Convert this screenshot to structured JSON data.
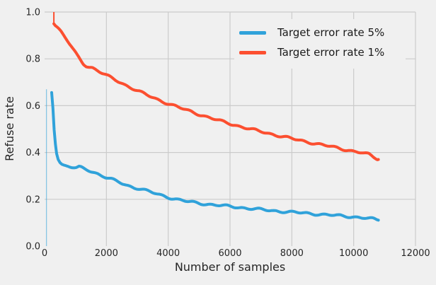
{
  "figure": {
    "background": "#f0f0f0",
    "grid_color": "#cbcbcb",
    "text_color": "#262626"
  },
  "chart_data": {
    "type": "line",
    "title": "",
    "xlabel": "Number of samples",
    "ylabel": "Refuse rate",
    "xlim": [
      0,
      12000
    ],
    "ylim": [
      0.0,
      1.0
    ],
    "grid": true,
    "legend_position": "upper right",
    "x_ticks": [
      {
        "value": 0,
        "label": "0"
      },
      {
        "value": 2000,
        "label": "2000"
      },
      {
        "value": 4000,
        "label": "4000"
      },
      {
        "value": 6000,
        "label": "6000"
      },
      {
        "value": 8000,
        "label": "8000"
      },
      {
        "value": 10000,
        "label": "10000"
      },
      {
        "value": 12000,
        "label": "12000"
      }
    ],
    "y_ticks": [
      {
        "value": 0.0,
        "label": "0.0"
      },
      {
        "value": 0.2,
        "label": "0.2"
      },
      {
        "value": 0.4,
        "label": "0.4"
      },
      {
        "value": 0.6,
        "label": "0.6"
      },
      {
        "value": 0.8,
        "label": "0.8"
      },
      {
        "value": 1.0,
        "label": "1.0"
      }
    ],
    "series": [
      {
        "name": "Target error rate 5%",
        "color": "#30a2da",
        "lead_in": {
          "n": 60,
          "from": 0.0,
          "to": 0.67
        },
        "points": [
          [
            230,
            0.655
          ],
          [
            270,
            0.59
          ],
          [
            310,
            0.5
          ],
          [
            350,
            0.44
          ],
          [
            390,
            0.4
          ],
          [
            440,
            0.375
          ],
          [
            500,
            0.36
          ],
          [
            560,
            0.35
          ],
          [
            640,
            0.344
          ],
          [
            720,
            0.341
          ],
          [
            820,
            0.338
          ],
          [
            920,
            0.336
          ],
          [
            1020,
            0.334
          ],
          [
            1120,
            0.337
          ],
          [
            1260,
            0.331
          ],
          [
            1400,
            0.325
          ],
          [
            1550,
            0.318
          ],
          [
            1700,
            0.31
          ],
          [
            1850,
            0.301
          ],
          [
            2000,
            0.293
          ],
          [
            2150,
            0.286
          ],
          [
            2300,
            0.278
          ],
          [
            2500,
            0.268
          ],
          [
            2700,
            0.258
          ],
          [
            2900,
            0.25
          ],
          [
            3100,
            0.245
          ],
          [
            3400,
            0.232
          ],
          [
            3700,
            0.22
          ],
          [
            4000,
            0.209
          ],
          [
            4300,
            0.199
          ],
          [
            4600,
            0.191
          ],
          [
            4900,
            0.185
          ],
          [
            5200,
            0.18
          ],
          [
            5500,
            0.176
          ],
          [
            5800,
            0.172
          ],
          [
            6100,
            0.168
          ],
          [
            6400,
            0.164
          ],
          [
            6700,
            0.16
          ],
          [
            7000,
            0.156
          ],
          [
            7300,
            0.152
          ],
          [
            7600,
            0.149
          ],
          [
            8000,
            0.145
          ],
          [
            8400,
            0.141
          ],
          [
            8800,
            0.137
          ],
          [
            9200,
            0.133
          ],
          [
            9600,
            0.129
          ],
          [
            10000,
            0.125
          ],
          [
            10300,
            0.121
          ],
          [
            10600,
            0.116
          ],
          [
            10800,
            0.111
          ]
        ]
      },
      {
        "name": "Target error rate 1%",
        "color": "#fc4f30",
        "lead_in": {
          "n": 300,
          "from": 1.0,
          "to": 0.95
        },
        "points": [
          [
            300,
            0.955
          ],
          [
            350,
            0.945
          ],
          [
            420,
            0.935
          ],
          [
            500,
            0.922
          ],
          [
            580,
            0.907
          ],
          [
            660,
            0.892
          ],
          [
            740,
            0.877
          ],
          [
            820,
            0.861
          ],
          [
            900,
            0.845
          ],
          [
            980,
            0.829
          ],
          [
            1060,
            0.813
          ],
          [
            1150,
            0.797
          ],
          [
            1250,
            0.78
          ],
          [
            1350,
            0.77
          ],
          [
            1450,
            0.765
          ],
          [
            1550,
            0.762
          ],
          [
            1650,
            0.755
          ],
          [
            1750,
            0.748
          ],
          [
            1850,
            0.74
          ],
          [
            2000,
            0.729
          ],
          [
            2150,
            0.719
          ],
          [
            2300,
            0.709
          ],
          [
            2450,
            0.699
          ],
          [
            2600,
            0.689
          ],
          [
            2800,
            0.677
          ],
          [
            3000,
            0.664
          ],
          [
            3200,
            0.652
          ],
          [
            3400,
            0.64
          ],
          [
            3600,
            0.629
          ],
          [
            3800,
            0.619
          ],
          [
            4000,
            0.609
          ],
          [
            4250,
            0.597
          ],
          [
            4500,
            0.585
          ],
          [
            4750,
            0.574
          ],
          [
            5000,
            0.563
          ],
          [
            5250,
            0.552
          ],
          [
            5500,
            0.542
          ],
          [
            5750,
            0.532
          ],
          [
            6000,
            0.523
          ],
          [
            6300,
            0.512
          ],
          [
            6600,
            0.502
          ],
          [
            6900,
            0.492
          ],
          [
            7200,
            0.483
          ],
          [
            7500,
            0.474
          ],
          [
            7800,
            0.465
          ],
          [
            8100,
            0.456
          ],
          [
            8400,
            0.448
          ],
          [
            8700,
            0.44
          ],
          [
            9000,
            0.432
          ],
          [
            9300,
            0.424
          ],
          [
            9600,
            0.416
          ],
          [
            9900,
            0.408
          ],
          [
            10200,
            0.4
          ],
          [
            10500,
            0.391
          ],
          [
            10800,
            0.37
          ]
        ]
      }
    ]
  }
}
